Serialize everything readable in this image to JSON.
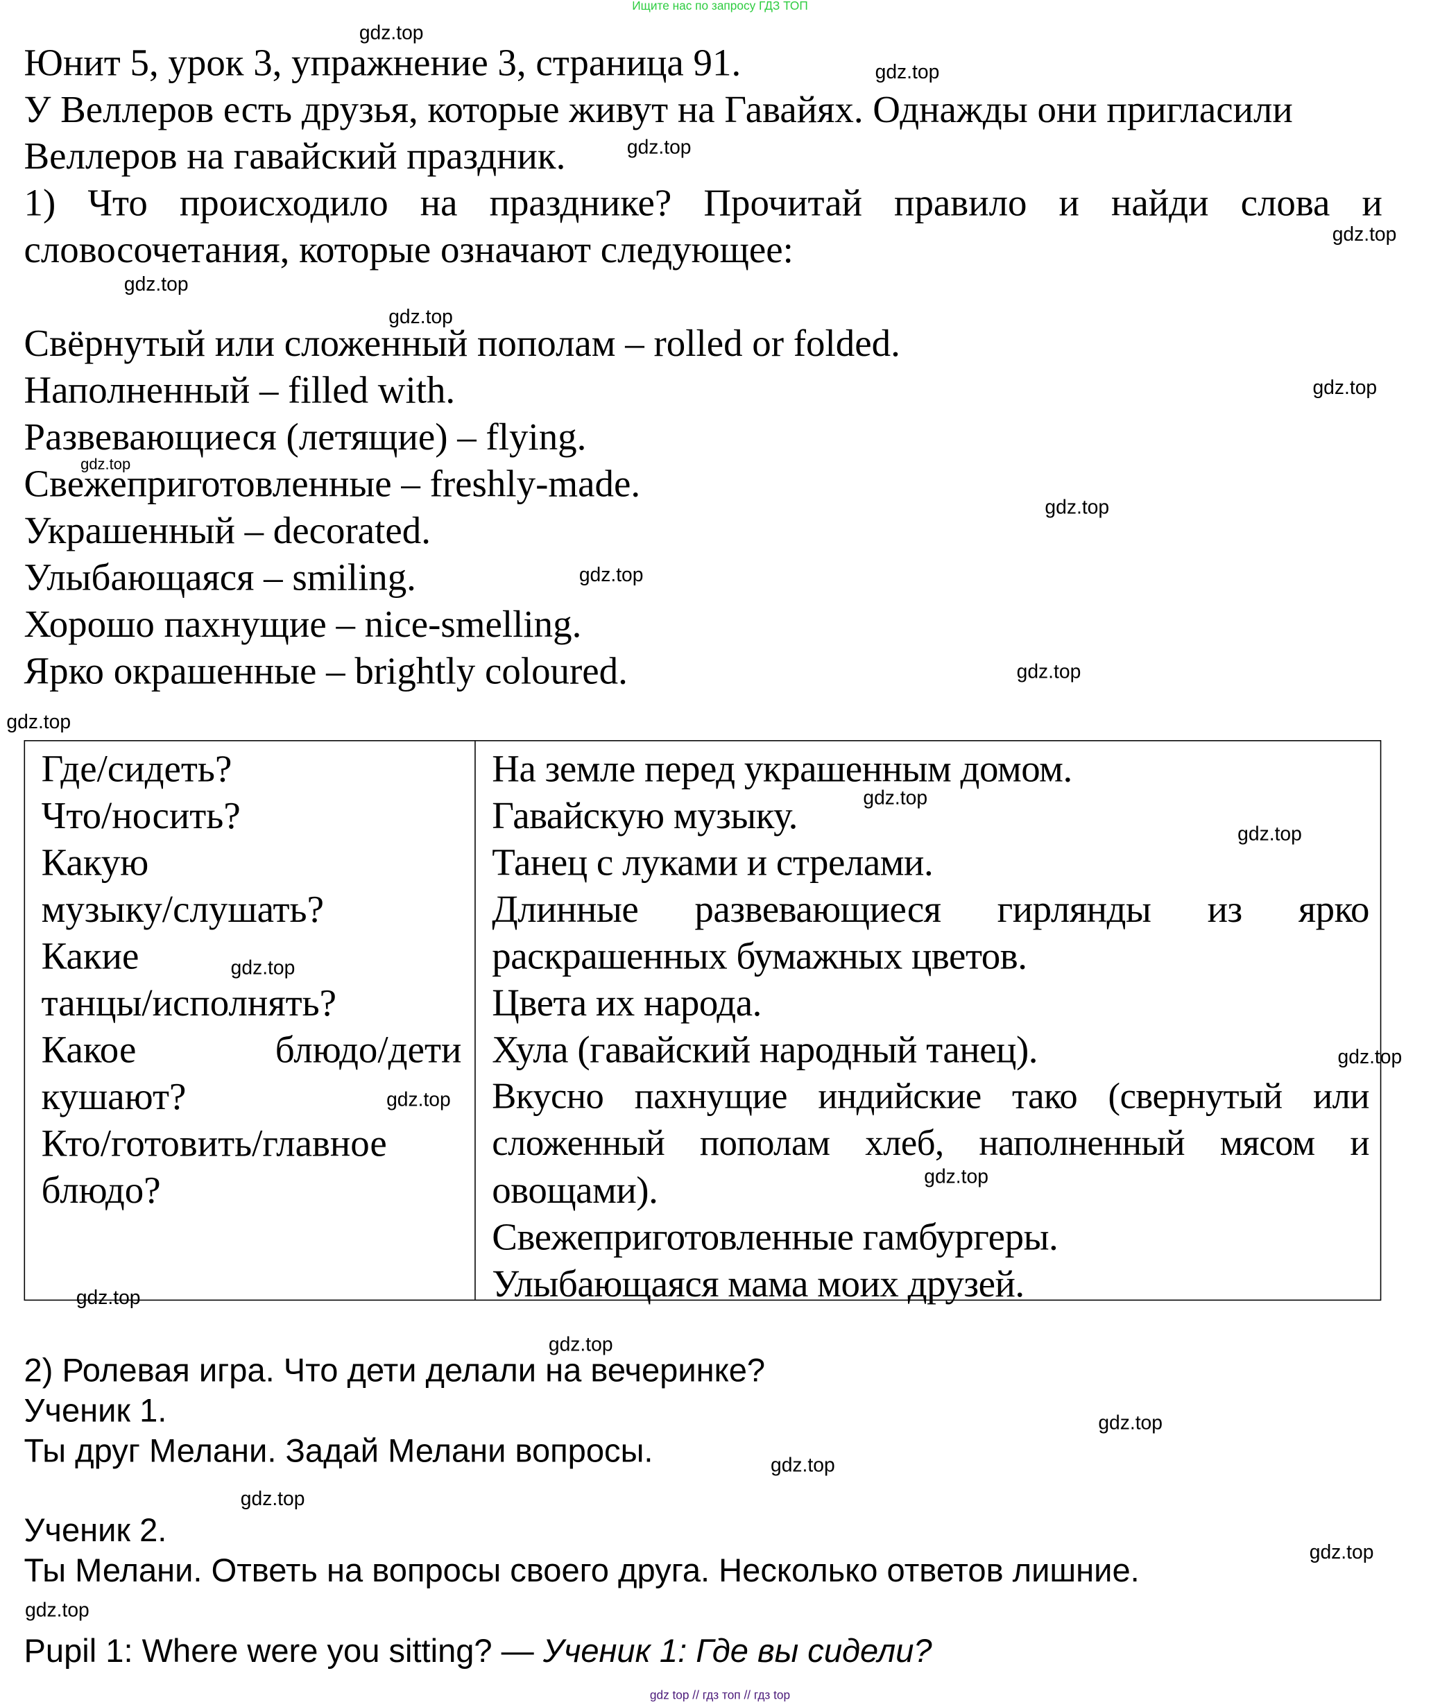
{
  "banner_top": "Ищите нас по запросу ГДЗ ТОП",
  "banner_bottom": "gdz top  //  гдз топ  //  гдз top",
  "watermark": "gdz.top",
  "header": {
    "title": "Юнит 5, урок 3, упражнение 3, страница 91.",
    "intro_lines": [
      "У Веллеров есть друзья, которые живут на Гавайях. Однажды они пригласили",
      "Веллеров на гавайский праздник."
    ],
    "task1_lines": [
      "1) Что происходило на празднике? Прочитай правило и найди слова и",
      "словосочетания, которые означают следующее:"
    ]
  },
  "vocab": [
    "Свёрнутый или сложенный пополам – rolled or folded.",
    "Наполненный – filled with.",
    "Развевающиеся (летящие) – flying.",
    "Свежеприготовленные – freshly-made.",
    "Украшенный – decorated.",
    "Улыбающаяся – smiling.",
    "Хорошо пахнущие – nice-smelling.",
    "Ярко окрашенные – brightly coloured."
  ],
  "table": {
    "left": [
      "Где/сидеть?",
      "Что/носить?",
      "Какую",
      "музыку/слушать?",
      "Какие",
      "танцы/исполнять?",
      "Какое блюдо/дети",
      "кушают?",
      "Кто/готовить/главное",
      "блюдо?"
    ],
    "right": [
      "На земле перед украшенным домом.",
      "Гавайскую музыку.",
      "Танец с луками и стрелами.",
      "Длинные развевающиеся гирлянды из ярко",
      "раскрашенных бумажных цветов.",
      "Цвета их народа.",
      "Хула (гавайский народный танец).",
      "Вкусно пахнущие индийские тако (свернутый или",
      "сложенный пополам хлеб, наполненный мясом и",
      "овощами).",
      "Свежеприготовленные гамбургеры.",
      "Улыбающаяся мама моих друзей."
    ]
  },
  "task2": {
    "heading": "2) Ролевая игра. Что дети делали на вечеринке?",
    "pupil1_label": "Ученик 1.",
    "pupil1_text": "Ты друг Мелани. Задай Мелани вопросы.",
    "pupil2_label": "Ученик 2.",
    "pupil2_text": "Ты Мелани. Ответь на вопросы своего друга. Несколько ответов лишние.",
    "dialog_en": "Pupil 1: Where were you sitting? — ",
    "dialog_ru": "Ученик 1: Где вы сидели?"
  }
}
